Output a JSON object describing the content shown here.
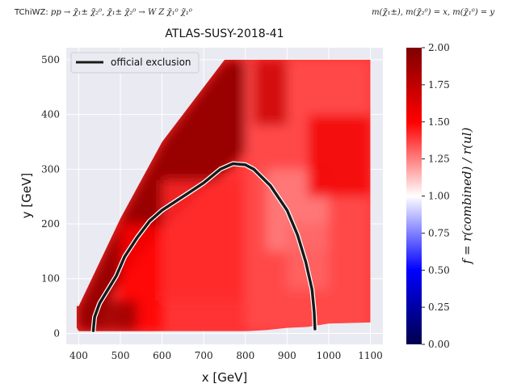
{
  "header": {
    "analysis_label": "TChiWZ:",
    "process": "pp → χ̃₁± χ̃₂⁰, χ̃₁± χ̃₂⁰ → W Z χ̃₁⁰ χ̃₁⁰",
    "mass_relation": "m(χ̃₁±), m(χ̃₂⁰) = x, m(χ̃₁⁰) = y"
  },
  "chart_data": {
    "type": "heatmap",
    "title": "ATLAS-SUSY-2018-41",
    "xlabel": "x [GeV]",
    "ylabel": "y [GeV]",
    "xlim": [
      370,
      1130
    ],
    "ylim": [
      -20,
      522
    ],
    "xticks": [
      400,
      500,
      600,
      700,
      800,
      900,
      1000,
      1100
    ],
    "yticks": [
      0,
      100,
      200,
      300,
      400,
      500
    ],
    "grid": true,
    "legend": {
      "location": "top-left",
      "entries": [
        "official exclusion"
      ]
    },
    "colorbar": {
      "label": "f = r(combined) / r(ul)",
      "range": [
        0,
        2
      ],
      "ticks": [
        "0.00",
        "0.25",
        "0.50",
        "0.75",
        "1.00",
        "1.25",
        "1.50",
        "1.75",
        "2.00"
      ],
      "colormap": "seismic"
    },
    "region_polygon": [
      [
        395,
        50
      ],
      [
        400,
        50
      ],
      [
        500,
        210
      ],
      [
        600,
        350
      ],
      [
        700,
        450
      ],
      [
        750,
        500
      ],
      [
        1100,
        500
      ],
      [
        1100,
        20
      ],
      [
        1000,
        18
      ],
      [
        950,
        12
      ],
      [
        900,
        10
      ],
      [
        850,
        6
      ],
      [
        800,
        4
      ],
      [
        400,
        4
      ],
      [
        395,
        10
      ]
    ],
    "value_patches": [
      {
        "x": [
          395,
          800
        ],
        "y": [
          4,
          500
        ],
        "value": 1.9,
        "shape": "diagonal-band"
      },
      {
        "x": [
          500,
          600
        ],
        "y": [
          4,
          200
        ],
        "value": 1.5
      },
      {
        "x": [
          400,
          540
        ],
        "y": [
          4,
          60
        ],
        "value": 1.9
      },
      {
        "x": [
          600,
          800
        ],
        "y": [
          60,
          280
        ],
        "value": 1.42
      },
      {
        "x": [
          800,
          1100
        ],
        "y": [
          4,
          500
        ],
        "value": 1.35
      },
      {
        "x": [
          850,
          1000
        ],
        "y": [
          150,
          300
        ],
        "value": 1.25
      },
      {
        "x": [
          950,
          1100
        ],
        "y": [
          250,
          400
        ],
        "value": 1.55
      },
      {
        "x": [
          820,
          900
        ],
        "y": [
          380,
          500
        ],
        "value": 1.7
      },
      {
        "x": [
          900,
          1000
        ],
        "y": [
          80,
          200
        ],
        "value": 1.3
      }
    ],
    "series": [
      {
        "name": "official exclusion",
        "x": [
          435,
          438,
          450,
          470,
          490,
          510,
          540,
          570,
          600,
          630,
          660,
          700,
          740,
          770,
          800,
          820,
          860,
          900,
          925,
          945,
          960,
          965,
          967
        ],
        "y": [
          5,
          30,
          55,
          80,
          105,
          140,
          175,
          205,
          225,
          240,
          255,
          275,
          300,
          310,
          308,
          300,
          270,
          225,
          180,
          130,
          80,
          40,
          8
        ]
      }
    ]
  }
}
